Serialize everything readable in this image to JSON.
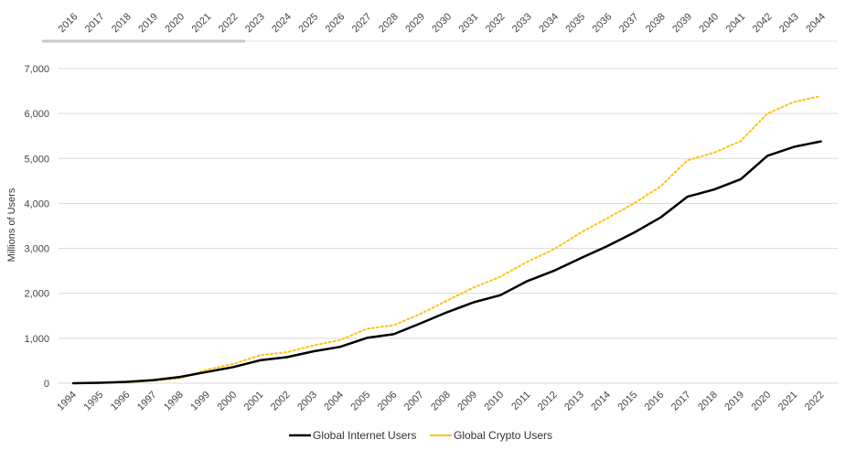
{
  "chart_data": {
    "type": "line",
    "title": "",
    "ylabel": "Millions of Users",
    "xlabel": "",
    "ylim": [
      0,
      7000
    ],
    "yticks": [
      0,
      1000,
      2000,
      3000,
      4000,
      5000,
      6000,
      7000
    ],
    "ytick_labels": [
      "0",
      "1,000",
      "2,000",
      "3,000",
      "4,000",
      "5,000",
      "6,000",
      "7,000"
    ],
    "grid": true,
    "legend_position": "bottom",
    "x": [
      "1994",
      "1995",
      "1996",
      "1997",
      "1998",
      "1999",
      "2000",
      "2001",
      "2002",
      "2003",
      "2004",
      "2005",
      "2006",
      "2007",
      "2008",
      "2009",
      "2010",
      "2011",
      "2012",
      "2013",
      "2014",
      "2015",
      "2016",
      "2017",
      "2018",
      "2019",
      "2020",
      "2021",
      "2022"
    ],
    "x_secondary": [
      "2016",
      "2017",
      "2018",
      "2019",
      "2020",
      "2021",
      "2022",
      "2023",
      "2024",
      "2025",
      "2026",
      "2027",
      "2028",
      "2029",
      "2030",
      "2031",
      "2032",
      "2033",
      "2034",
      "2035",
      "2036",
      "2037",
      "2038",
      "2039",
      "2040",
      "2041",
      "2042",
      "2043",
      "2044"
    ],
    "series": [
      {
        "name": "Global Internet Users",
        "color": "#000000",
        "style": "solid",
        "values": [
          0,
          10,
          30,
          70,
          140,
          250,
          360,
          510,
          580,
          710,
          810,
          1010,
          1090,
          1330,
          1580,
          1800,
          1960,
          2270,
          2500,
          2780,
          3050,
          3350,
          3690,
          4150,
          4310,
          4540,
          5060,
          5260,
          5380
        ]
      },
      {
        "name": "Global Crypto Users",
        "color": "#FFC20E",
        "style": "dotted",
        "values": [
          0,
          5,
          20,
          55,
          110,
          300,
          430,
          620,
          690,
          840,
          960,
          1210,
          1290,
          1540,
          1840,
          2130,
          2370,
          2700,
          2980,
          3350,
          3670,
          4000,
          4380,
          4960,
          5130,
          5390,
          6000,
          6260,
          6390
        ]
      }
    ]
  }
}
